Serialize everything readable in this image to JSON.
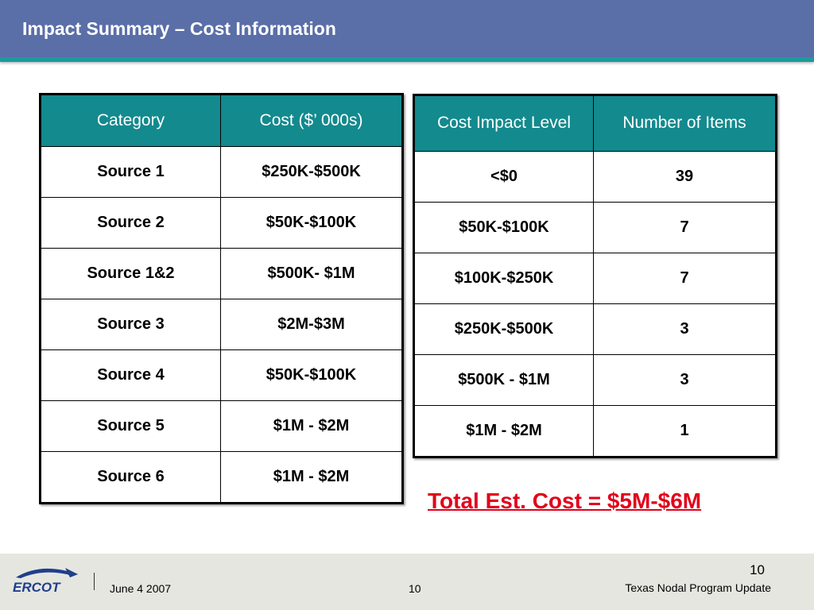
{
  "slide": {
    "title": "Impact Summary – Cost Information"
  },
  "left_table": {
    "headers": [
      "Category",
      "Cost ($’ 000s)"
    ],
    "rows": [
      [
        "Source 1",
        "$250K-$500K"
      ],
      [
        "Source 2",
        "$50K-$100K"
      ],
      [
        "Source 1&2",
        "$500K- $1M"
      ],
      [
        "Source 3",
        "$2M-$3M"
      ],
      [
        "Source 4",
        "$50K-$100K"
      ],
      [
        "Source 5",
        "$1M - $2M"
      ],
      [
        "Source 6",
        "$1M - $2M"
      ]
    ]
  },
  "right_table": {
    "headers": [
      "Cost Impact Level",
      "Number of Items"
    ],
    "rows": [
      [
        "<$0",
        "39"
      ],
      [
        "$50K-$100K",
        "7"
      ],
      [
        "$100K-$250K",
        "7"
      ],
      [
        "$250K-$500K",
        "3"
      ],
      [
        "$500K - $1M",
        "3"
      ],
      [
        "$1M - $2M",
        "1"
      ]
    ]
  },
  "total": "Total Est. Cost = $5M-$6M",
  "footer": {
    "logo_text": "ERCOT",
    "date": "June 4 2007",
    "center_page": "10",
    "page_number": "10",
    "program": "Texas Nodal Program Update"
  },
  "colors": {
    "title_bar": "#5a6ea8",
    "accent_teal": "#138a8e",
    "total_red": "#e3001b",
    "footer_bg": "#e6e6e0"
  }
}
